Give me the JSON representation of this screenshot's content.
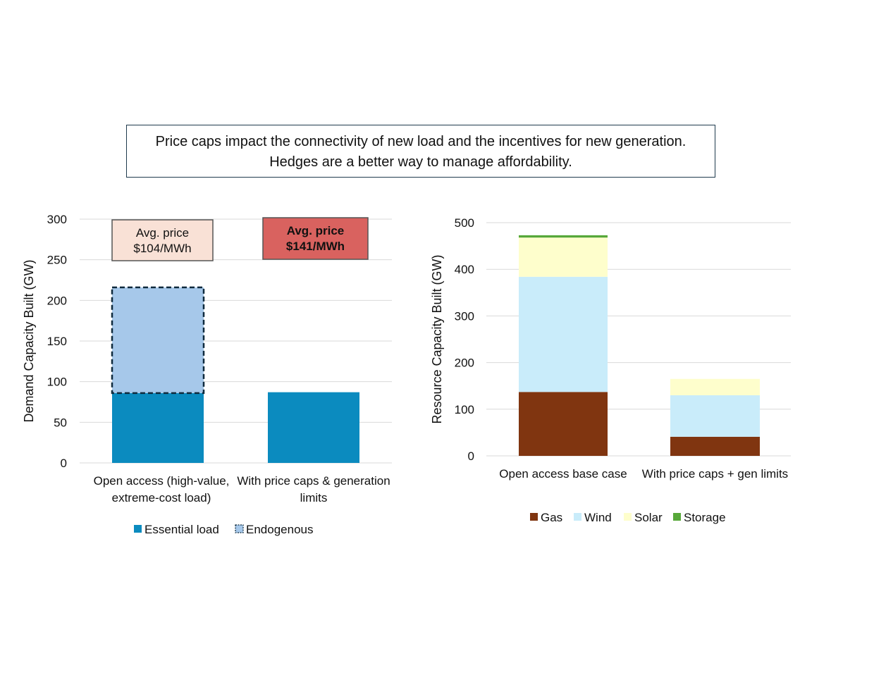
{
  "title_lines": [
    "Price caps impact the connectivity of new load and the incentives for new generation.",
    "Hedges are a better way to manage affordability."
  ],
  "chart_data": [
    {
      "type": "bar",
      "stacked": true,
      "ylabel": "Demand Capacity Built (GW)",
      "ylim": [
        0,
        300
      ],
      "yticks": [
        0,
        50,
        100,
        150,
        200,
        250,
        300
      ],
      "grid": true,
      "legend_position": "bottom",
      "categories": [
        [
          "Open access (high-value,",
          "extreme-cost load)"
        ],
        [
          "With price caps & generation",
          "limits"
        ]
      ],
      "series": [
        {
          "name": "Essential load",
          "values": [
            86,
            87
          ],
          "color": "#0b8bbf"
        },
        {
          "name": "Endogenous",
          "values": [
            130,
            0
          ],
          "color": "#a6c8ea",
          "border": "dashed"
        }
      ],
      "annotations": [
        {
          "lines": [
            "Avg. price",
            "$104/MWh"
          ],
          "category": 0,
          "fill": "#f9e1d6",
          "bold": false
        },
        {
          "lines": [
            "Avg. price",
            "$141/MWh"
          ],
          "category": 1,
          "fill": "#d9625f",
          "bold": true
        }
      ]
    },
    {
      "type": "bar",
      "stacked": true,
      "ylabel": "Resource Capacity Built (GW)",
      "ylim": [
        0,
        500
      ],
      "yticks": [
        0,
        100,
        200,
        300,
        400,
        500
      ],
      "grid": true,
      "legend_position": "bottom",
      "categories": [
        [
          "Open access base case"
        ],
        [
          "With price caps + gen limits"
        ]
      ],
      "series": [
        {
          "name": "Gas",
          "values": [
            137,
            41
          ],
          "color": "#803510"
        },
        {
          "name": "Wind",
          "values": [
            247,
            89
          ],
          "color": "#c9ecfa"
        },
        {
          "name": "Solar",
          "values": [
            84,
            35
          ],
          "color": "#fefecc"
        },
        {
          "name": "Storage",
          "values": [
            5,
            0
          ],
          "color": "#57a83a"
        }
      ]
    }
  ]
}
